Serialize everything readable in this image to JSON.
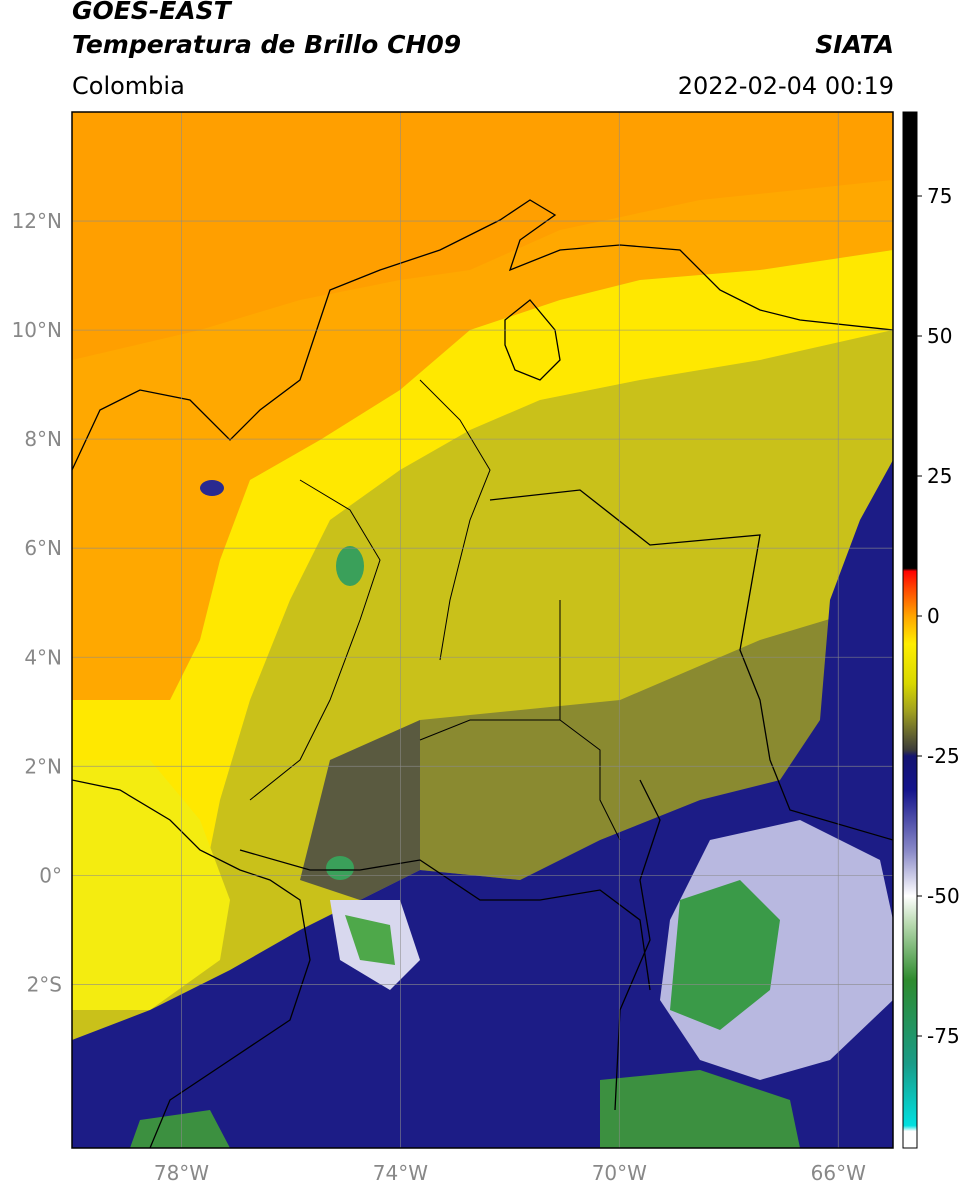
{
  "header": {
    "satellite": "GOES-EAST",
    "product": "Temperatura de Brillo CH09",
    "region": "Colombia",
    "agency": "SIATA",
    "datetime": "2022-02-04 00:19"
  },
  "map": {
    "lon_range": [
      -80,
      -65
    ],
    "lat_range": [
      -5,
      14
    ],
    "lat_ticks": [
      {
        "value": 12,
        "label": "12°N"
      },
      {
        "value": 10,
        "label": "10°N"
      },
      {
        "value": 8,
        "label": "8°N"
      },
      {
        "value": 6,
        "label": "6°N"
      },
      {
        "value": 4,
        "label": "4°N"
      },
      {
        "value": 2,
        "label": "2°N"
      },
      {
        "value": 0,
        "label": "0°"
      },
      {
        "value": -2,
        "label": "2°S"
      }
    ],
    "lon_ticks": [
      {
        "value": -78,
        "label": "78°W"
      },
      {
        "value": -74,
        "label": "74°W"
      },
      {
        "value": -70,
        "label": "70°W"
      },
      {
        "value": -66,
        "label": "66°W"
      }
    ]
  },
  "colorbar": {
    "range": [
      -95,
      90
    ],
    "ticks": [
      {
        "value": 75,
        "label": "75"
      },
      {
        "value": 50,
        "label": "50"
      },
      {
        "value": 25,
        "label": "25"
      },
      {
        "value": 0,
        "label": "0"
      },
      {
        "value": -25,
        "label": "-25"
      },
      {
        "value": -50,
        "label": "-50"
      },
      {
        "value": -75,
        "label": "-75"
      }
    ],
    "stops": [
      {
        "value": -95,
        "color": "#ffffff"
      },
      {
        "value": -92,
        "color": "#ffffff"
      },
      {
        "value": -91,
        "color": "#00e0e0"
      },
      {
        "value": -80,
        "color": "#1a9c88"
      },
      {
        "value": -65,
        "color": "#2e8b2e"
      },
      {
        "value": -55,
        "color": "#b8dab0"
      },
      {
        "value": -50,
        "color": "#ffffff"
      },
      {
        "value": -42,
        "color": "#8a8ac8"
      },
      {
        "value": -31,
        "color": "#14148c"
      },
      {
        "value": -25,
        "color": "#141470"
      },
      {
        "value": -24,
        "color": "#3a3a3a"
      },
      {
        "value": -17,
        "color": "#a0a020"
      },
      {
        "value": -12,
        "color": "#d8d800"
      },
      {
        "value": -5,
        "color": "#ffee00"
      },
      {
        "value": 0,
        "color": "#ffa500"
      },
      {
        "value": 5,
        "color": "#ff4400"
      },
      {
        "value": 8,
        "color": "#ff0000"
      },
      {
        "value": 8.5,
        "color": "#000000"
      },
      {
        "value": 90,
        "color": "#000000"
      }
    ]
  }
}
